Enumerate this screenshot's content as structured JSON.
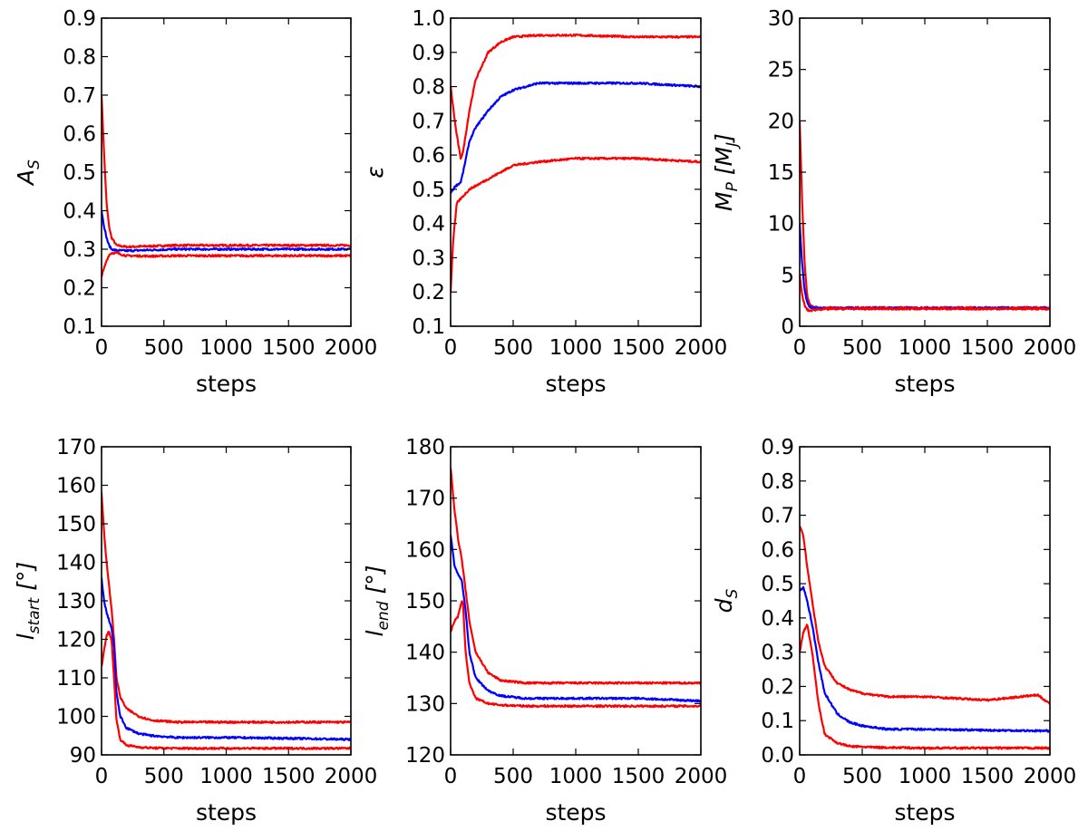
{
  "figure": {
    "background": "#ffffff",
    "series_colors": {
      "median": "#0000ff",
      "bounds": "#ff0000"
    }
  },
  "chart_data": [
    {
      "type": "line",
      "panel": "top-left",
      "ylabel": "A",
      "ylabel_sub": "S",
      "xlabel": "steps",
      "xlim": [
        0,
        2000
      ],
      "ylim": [
        0.1,
        0.9
      ],
      "xticks": [
        0,
        500,
        1000,
        1500,
        2000
      ],
      "xtick_labels": [
        "0",
        "500",
        "1000",
        "1500",
        "2000"
      ],
      "yticks": [
        0.1,
        0.2,
        0.3,
        0.4,
        0.5,
        0.6,
        0.7,
        0.8,
        0.9
      ],
      "ytick_labels": [
        "0.1",
        "0.2",
        "0.3",
        "0.4",
        "0.5",
        "0.6",
        "0.7",
        "0.8",
        "0.9"
      ],
      "series": [
        {
          "name": "upper",
          "color": "#ff0000",
          "x": [
            0,
            20,
            40,
            60,
            80,
            120,
            200,
            400,
            600,
            1000,
            1500,
            2000
          ],
          "values": [
            0.7,
            0.55,
            0.42,
            0.36,
            0.33,
            0.31,
            0.306,
            0.308,
            0.31,
            0.31,
            0.31,
            0.31
          ]
        },
        {
          "name": "median",
          "color": "#0000ff",
          "x": [
            0,
            20,
            40,
            60,
            80,
            120,
            200,
            400,
            600,
            1000,
            1500,
            2000
          ],
          "values": [
            0.4,
            0.36,
            0.33,
            0.31,
            0.3,
            0.297,
            0.296,
            0.298,
            0.3,
            0.3,
            0.3,
            0.3
          ]
        },
        {
          "name": "lower",
          "color": "#ff0000",
          "x": [
            0,
            20,
            40,
            60,
            80,
            120,
            200,
            400,
            600,
            1000,
            1500,
            2000
          ],
          "values": [
            0.23,
            0.25,
            0.27,
            0.285,
            0.29,
            0.29,
            0.283,
            0.282,
            0.283,
            0.283,
            0.283,
            0.283
          ]
        }
      ]
    },
    {
      "type": "line",
      "panel": "top-middle",
      "ylabel": "ε",
      "ylabel_sub": "",
      "xlabel": "steps",
      "xlim": [
        0,
        2000
      ],
      "ylim": [
        0.1,
        1.0
      ],
      "xticks": [
        0,
        500,
        1000,
        1500,
        2000
      ],
      "xtick_labels": [
        "0",
        "500",
        "1000",
        "1500",
        "2000"
      ],
      "yticks": [
        0.1,
        0.2,
        0.3,
        0.4,
        0.5,
        0.6,
        0.7,
        0.8,
        0.9,
        1.0
      ],
      "ytick_labels": [
        "0.1",
        "0.2",
        "0.3",
        "0.4",
        "0.5",
        "0.6",
        "0.7",
        "0.8",
        "0.9",
        "1.0"
      ],
      "series": [
        {
          "name": "upper",
          "color": "#ff0000",
          "x": [
            0,
            40,
            80,
            100,
            150,
            200,
            300,
            400,
            500,
            700,
            1000,
            1500,
            2000
          ],
          "values": [
            0.8,
            0.68,
            0.59,
            0.61,
            0.73,
            0.82,
            0.9,
            0.93,
            0.945,
            0.95,
            0.95,
            0.945,
            0.945
          ]
        },
        {
          "name": "median",
          "color": "#0000ff",
          "x": [
            0,
            40,
            80,
            100,
            150,
            200,
            300,
            400,
            500,
            700,
            1000,
            1500,
            2000
          ],
          "values": [
            0.49,
            0.51,
            0.52,
            0.55,
            0.64,
            0.68,
            0.73,
            0.77,
            0.79,
            0.81,
            0.81,
            0.81,
            0.8
          ]
        },
        {
          "name": "lower",
          "color": "#ff0000",
          "x": [
            0,
            20,
            50,
            100,
            150,
            200,
            300,
            400,
            500,
            700,
            1000,
            1500,
            2000
          ],
          "values": [
            0.2,
            0.35,
            0.46,
            0.48,
            0.5,
            0.51,
            0.53,
            0.55,
            0.57,
            0.58,
            0.59,
            0.59,
            0.58
          ]
        }
      ]
    },
    {
      "type": "line",
      "panel": "top-right",
      "ylabel": "M",
      "ylabel_sub": "P",
      "ylabel_unit": "[M",
      "ylabel_unit_sub": "J",
      "ylabel_close": "]",
      "xlabel": "steps",
      "xlim": [
        0,
        2000
      ],
      "ylim": [
        0,
        30
      ],
      "xticks": [
        0,
        500,
        1000,
        1500,
        2000
      ],
      "xtick_labels": [
        "0",
        "500",
        "1000",
        "1500",
        "2000"
      ],
      "yticks": [
        0,
        5,
        10,
        15,
        20,
        25,
        30
      ],
      "ytick_labels": [
        "0",
        "5",
        "10",
        "15",
        "20",
        "25",
        "30"
      ],
      "series": [
        {
          "name": "upper",
          "color": "#ff0000",
          "x": [
            0,
            20,
            40,
            60,
            80,
            100,
            150,
            300,
            1000,
            2000
          ],
          "values": [
            20,
            12,
            6,
            3,
            2.2,
            1.9,
            1.8,
            1.8,
            1.8,
            1.8
          ]
        },
        {
          "name": "median",
          "color": "#0000ff",
          "x": [
            0,
            20,
            40,
            60,
            80,
            100,
            150,
            300,
            1000,
            2000
          ],
          "values": [
            10,
            6,
            3.5,
            2.3,
            1.9,
            1.8,
            1.75,
            1.75,
            1.75,
            1.75
          ]
        },
        {
          "name": "lower",
          "color": "#ff0000",
          "x": [
            0,
            20,
            40,
            60,
            80,
            100,
            150,
            300,
            1000,
            2000
          ],
          "values": [
            5,
            3,
            2,
            1.6,
            1.5,
            1.55,
            1.65,
            1.7,
            1.7,
            1.7
          ]
        }
      ]
    },
    {
      "type": "line",
      "panel": "bottom-left",
      "ylabel": "l",
      "ylabel_sub": "start",
      "ylabel_unit": "[°]",
      "xlabel": "steps",
      "xlim": [
        0,
        2000
      ],
      "ylim": [
        90,
        170
      ],
      "xticks": [
        0,
        500,
        1000,
        1500,
        2000
      ],
      "xtick_labels": [
        "0",
        "500",
        "1000",
        "1500",
        "2000"
      ],
      "yticks": [
        90,
        100,
        110,
        120,
        130,
        140,
        150,
        160,
        170
      ],
      "ytick_labels": [
        "90",
        "100",
        "110",
        "120",
        "130",
        "140",
        "150",
        "160",
        "170"
      ],
      "series": [
        {
          "name": "upper",
          "color": "#ff0000",
          "x": [
            0,
            20,
            40,
            60,
            80,
            100,
            120,
            150,
            200,
            300,
            400,
            600,
            1000,
            1500,
            2000
          ],
          "values": [
            158,
            148,
            140,
            134,
            128,
            120,
            110,
            105,
            102,
            100,
            99,
            98.5,
            98.5,
            98.5,
            98.5
          ]
        },
        {
          "name": "median",
          "color": "#0000ff",
          "x": [
            0,
            20,
            40,
            60,
            80,
            100,
            120,
            150,
            200,
            300,
            400,
            600,
            1000,
            1500,
            2000
          ],
          "values": [
            136,
            130,
            127,
            125,
            123,
            118,
            106,
            100,
            97,
            95.5,
            95,
            94.5,
            94.5,
            94.3,
            94
          ]
        },
        {
          "name": "lower",
          "color": "#ff0000",
          "x": [
            0,
            20,
            40,
            60,
            80,
            100,
            120,
            150,
            200,
            300,
            400,
            600,
            1000,
            1500,
            2000
          ],
          "values": [
            113,
            117,
            121,
            122,
            120,
            110,
            99,
            94,
            92.5,
            92,
            91.8,
            91.7,
            91.7,
            91.7,
            91.7
          ]
        }
      ]
    },
    {
      "type": "line",
      "panel": "bottom-middle",
      "ylabel": "l",
      "ylabel_sub": "end",
      "ylabel_unit": "[°]",
      "xlabel": "steps",
      "xlim": [
        0,
        2000
      ],
      "ylim": [
        120,
        180
      ],
      "xticks": [
        0,
        500,
        1000,
        1500,
        2000
      ],
      "xtick_labels": [
        "0",
        "500",
        "1000",
        "1500",
        "2000"
      ],
      "yticks": [
        120,
        130,
        140,
        150,
        160,
        170,
        180
      ],
      "ytick_labels": [
        "120",
        "130",
        "140",
        "150",
        "160",
        "170",
        "180"
      ],
      "series": [
        {
          "name": "upper",
          "color": "#ff0000",
          "x": [
            0,
            30,
            60,
            90,
            120,
            150,
            200,
            300,
            400,
            600,
            1000,
            1500,
            2000
          ],
          "values": [
            176,
            168,
            162,
            158,
            152,
            146,
            140,
            136,
            134.5,
            134,
            134,
            134,
            134
          ]
        },
        {
          "name": "median",
          "color": "#0000ff",
          "x": [
            0,
            30,
            60,
            90,
            120,
            150,
            200,
            300,
            400,
            600,
            1000,
            1500,
            2000
          ],
          "values": [
            163,
            157,
            155,
            154,
            148,
            140,
            135,
            132.5,
            131.5,
            131,
            131,
            131,
            130.5
          ]
        },
        {
          "name": "lower",
          "color": "#ff0000",
          "x": [
            0,
            30,
            60,
            90,
            100,
            120,
            150,
            200,
            300,
            400,
            600,
            1000,
            1500,
            2000
          ],
          "values": [
            144,
            146,
            147,
            150,
            149,
            140,
            134,
            131,
            130,
            129.7,
            129.5,
            129.5,
            129.5,
            129.5
          ]
        }
      ]
    },
    {
      "type": "line",
      "panel": "bottom-right",
      "ylabel": "d",
      "ylabel_sub": "S",
      "xlabel": "steps",
      "xlim": [
        0,
        2000
      ],
      "ylim": [
        0.0,
        0.9
      ],
      "xticks": [
        0,
        500,
        1000,
        1500,
        2000
      ],
      "xtick_labels": [
        "0",
        "500",
        "1000",
        "1500",
        "2000"
      ],
      "yticks": [
        0.0,
        0.1,
        0.2,
        0.3,
        0.4,
        0.5,
        0.6,
        0.7,
        0.8,
        0.9
      ],
      "ytick_labels": [
        "0.0",
        "0.1",
        "0.2",
        "0.3",
        "0.4",
        "0.5",
        "0.6",
        "0.7",
        "0.8",
        "0.9"
      ],
      "series": [
        {
          "name": "upper",
          "color": "#ff0000",
          "x": [
            0,
            30,
            60,
            100,
            150,
            200,
            300,
            400,
            500,
            700,
            1000,
            1500,
            1900,
            2000
          ],
          "values": [
            0.67,
            0.64,
            0.55,
            0.45,
            0.33,
            0.26,
            0.21,
            0.19,
            0.18,
            0.17,
            0.17,
            0.16,
            0.175,
            0.15
          ]
        },
        {
          "name": "median",
          "color": "#0000ff",
          "x": [
            0,
            30,
            60,
            100,
            150,
            200,
            300,
            400,
            500,
            700,
            1000,
            1500,
            2000
          ],
          "values": [
            0.48,
            0.49,
            0.45,
            0.38,
            0.27,
            0.18,
            0.12,
            0.095,
            0.085,
            0.075,
            0.075,
            0.072,
            0.07
          ]
        },
        {
          "name": "lower",
          "color": "#ff0000",
          "x": [
            0,
            30,
            60,
            100,
            150,
            200,
            300,
            400,
            600,
            1000,
            1500,
            2000
          ],
          "values": [
            0.3,
            0.36,
            0.38,
            0.3,
            0.15,
            0.06,
            0.035,
            0.025,
            0.022,
            0.02,
            0.02,
            0.02
          ]
        }
      ]
    }
  ]
}
